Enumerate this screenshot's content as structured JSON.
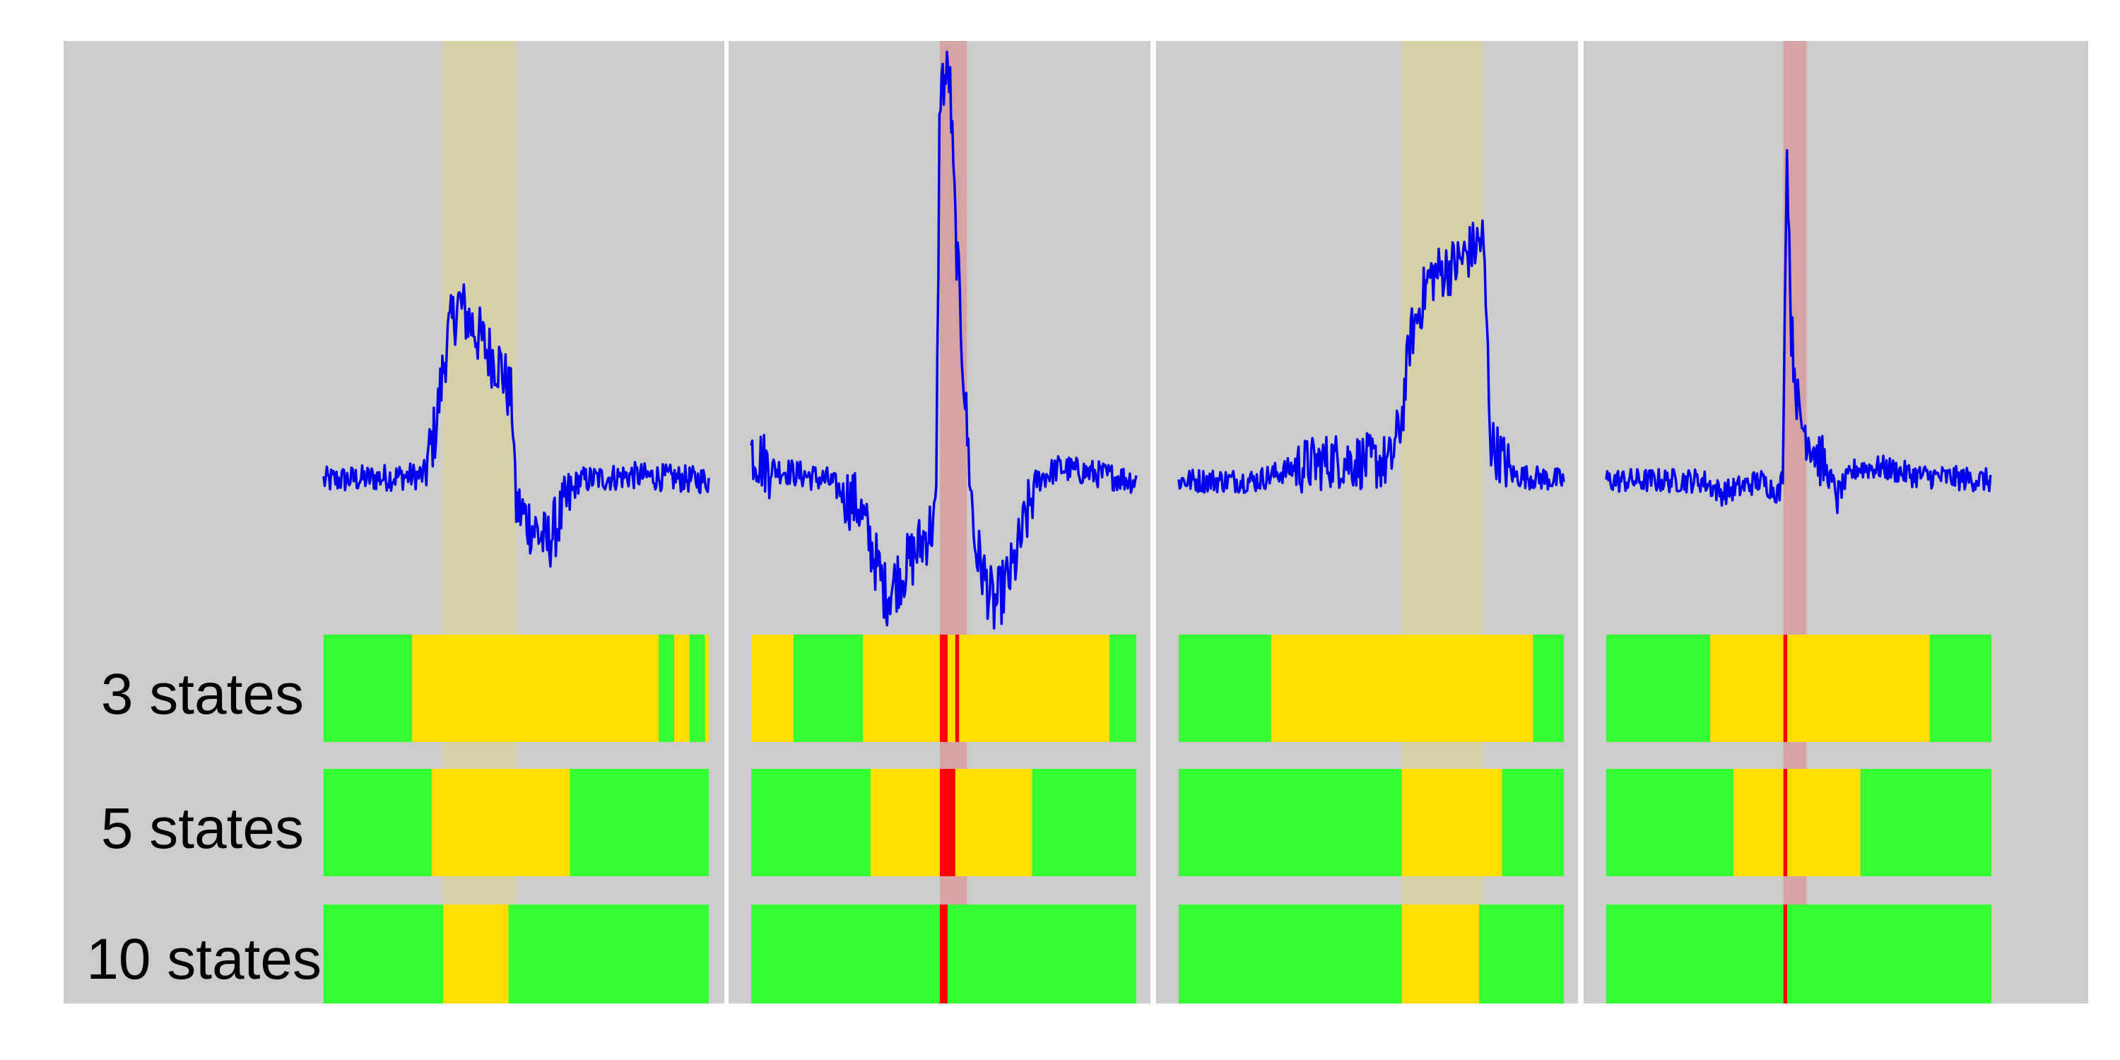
{
  "colors": {
    "background": "#cccccc",
    "trace": "#0000ee",
    "state_normal": "#33ff33",
    "state_warning": "#ffdd00",
    "state_critical": "#ff0000",
    "band_warning": "#d6d0a6",
    "band_critical": "#d6a3a4",
    "separator": "#ffffff"
  },
  "chart_data": {
    "type": "line",
    "title": "",
    "xlabel": "",
    "ylabel": "",
    "row_labels": [
      "3 states",
      "5 states",
      "10 states"
    ],
    "panels": [
      {
        "highlight": {
          "kind": "warning",
          "start": 0.31,
          "end": 0.5
        },
        "trace": {
          "baseline": 0.0,
          "segments": [
            [
              0.0,
              0.0
            ],
            [
              0.26,
              0.02
            ],
            [
              0.29,
              0.2
            ],
            [
              0.32,
              0.55
            ],
            [
              0.35,
              0.7
            ],
            [
              0.39,
              0.6
            ],
            [
              0.43,
              0.5
            ],
            [
              0.46,
              0.45
            ],
            [
              0.49,
              0.3
            ],
            [
              0.5,
              -0.1
            ],
            [
              0.58,
              -0.25
            ],
            [
              0.66,
              0.0
            ],
            [
              0.8,
              0.02
            ],
            [
              1.0,
              0.0
            ]
          ],
          "noise": 0.09
        },
        "states": {
          "3 states": [
            [
              "normal",
              0.0,
              0.23
            ],
            [
              "warning",
              0.23,
              0.87
            ],
            [
              "normal",
              0.87,
              0.91
            ],
            [
              "warning",
              0.91,
              0.95
            ],
            [
              "normal",
              0.95,
              0.99
            ],
            [
              "warning",
              0.99,
              1.0
            ]
          ],
          "5 states": [
            [
              "normal",
              0.0,
              0.28
            ],
            [
              "warning",
              0.28,
              0.64
            ],
            [
              "normal",
              0.64,
              1.0
            ]
          ],
          "10 states": [
            [
              "normal",
              0.0,
              0.31
            ],
            [
              "warning",
              0.31,
              0.48
            ],
            [
              "normal",
              0.48,
              1.0
            ]
          ]
        }
      },
      {
        "highlight": {
          "kind": "critical",
          "start": 0.49,
          "end": 0.56
        },
        "trace": {
          "baseline": 0.0,
          "segments": [
            [
              0.0,
              0.12
            ],
            [
              0.05,
              0.05
            ],
            [
              0.2,
              0.0
            ],
            [
              0.28,
              -0.1
            ],
            [
              0.35,
              -0.45
            ],
            [
              0.42,
              -0.3
            ],
            [
              0.48,
              -0.15
            ],
            [
              0.49,
              1.55
            ],
            [
              0.515,
              1.6
            ],
            [
              0.53,
              1.0
            ],
            [
              0.56,
              0.2
            ],
            [
              0.58,
              -0.25
            ],
            [
              0.63,
              -0.5
            ],
            [
              0.68,
              -0.35
            ],
            [
              0.74,
              0.0
            ],
            [
              0.8,
              0.05
            ],
            [
              1.0,
              0.0
            ]
          ],
          "noise": 0.09
        },
        "states": {
          "3 states": [
            [
              "warning",
              0.0,
              0.11
            ],
            [
              "normal",
              0.11,
              0.29
            ],
            [
              "warning",
              0.29,
              0.49
            ],
            [
              "critical",
              0.49,
              0.51
            ],
            [
              "warning",
              0.51,
              0.53
            ],
            [
              "critical",
              0.53,
              0.54
            ],
            [
              "warning",
              0.54,
              0.93
            ],
            [
              "normal",
              0.93,
              1.0
            ]
          ],
          "5 states": [
            [
              "normal",
              0.0,
              0.31
            ],
            [
              "warning",
              0.31,
              0.49
            ],
            [
              "critical",
              0.49,
              0.53
            ],
            [
              "warning",
              0.53,
              0.73
            ],
            [
              "normal",
              0.73,
              1.0
            ]
          ],
          "10 states": [
            [
              "normal",
              0.0,
              0.49
            ],
            [
              "critical",
              0.49,
              0.51
            ],
            [
              "normal",
              0.51,
              1.0
            ]
          ]
        }
      },
      {
        "highlight": {
          "kind": "warning",
          "start": 0.58,
          "end": 0.79
        },
        "trace": {
          "baseline": 0.0,
          "segments": [
            [
              0.0,
              0.0
            ],
            [
              0.2,
              0.0
            ],
            [
              0.3,
              0.05
            ],
            [
              0.4,
              0.08
            ],
            [
              0.55,
              0.07
            ],
            [
              0.58,
              0.25
            ],
            [
              0.6,
              0.55
            ],
            [
              0.65,
              0.8
            ],
            [
              0.72,
              0.85
            ],
            [
              0.79,
              0.95
            ],
            [
              0.8,
              0.6
            ],
            [
              0.81,
              0.15
            ],
            [
              0.87,
              0.02
            ],
            [
              1.0,
              0.0
            ]
          ],
          "noise": 0.08
        },
        "states": {
          "3 states": [
            [
              "normal",
              0.0,
              0.24
            ],
            [
              "warning",
              0.24,
              0.92
            ],
            [
              "normal",
              0.92,
              1.0
            ]
          ],
          "5 states": [
            [
              "normal",
              0.0,
              0.58
            ],
            [
              "warning",
              0.58,
              0.84
            ],
            [
              "normal",
              0.84,
              1.0
            ]
          ],
          "10 states": [
            [
              "normal",
              0.0,
              0.58
            ],
            [
              "warning",
              0.58,
              0.78
            ],
            [
              "normal",
              0.78,
              1.0
            ]
          ]
        }
      },
      {
        "highlight": {
          "kind": "critical",
          "start": 0.46,
          "end": 0.52
        },
        "trace": {
          "baseline": 0.0,
          "segments": [
            [
              0.0,
              0.0
            ],
            [
              0.25,
              0.0
            ],
            [
              0.3,
              -0.05
            ],
            [
              0.4,
              0.0
            ],
            [
              0.45,
              -0.05
            ],
            [
              0.46,
              0.05
            ],
            [
              0.465,
              1.0
            ],
            [
              0.47,
              1.3
            ],
            [
              0.48,
              0.6
            ],
            [
              0.5,
              0.25
            ],
            [
              0.55,
              0.1
            ],
            [
              0.6,
              -0.05
            ],
            [
              0.65,
              0.05
            ],
            [
              0.72,
              0.05
            ],
            [
              0.8,
              0.02
            ],
            [
              1.0,
              0.0
            ]
          ],
          "noise": 0.08
        },
        "states": {
          "3 states": [
            [
              "normal",
              0.0,
              0.27
            ],
            [
              "warning",
              0.27,
              0.46
            ],
            [
              "critical",
              0.46,
              0.47
            ],
            [
              "warning",
              0.47,
              0.84
            ],
            [
              "normal",
              0.84,
              1.0
            ]
          ],
          "5 states": [
            [
              "normal",
              0.0,
              0.33
            ],
            [
              "warning",
              0.33,
              0.46
            ],
            [
              "critical",
              0.46,
              0.47
            ],
            [
              "warning",
              0.47,
              0.66
            ],
            [
              "normal",
              0.66,
              1.0
            ]
          ],
          "10 states": [
            [
              "normal",
              0.0,
              0.46
            ],
            [
              "critical",
              0.46,
              0.47
            ],
            [
              "normal",
              0.47,
              1.0
            ]
          ]
        }
      }
    ]
  }
}
